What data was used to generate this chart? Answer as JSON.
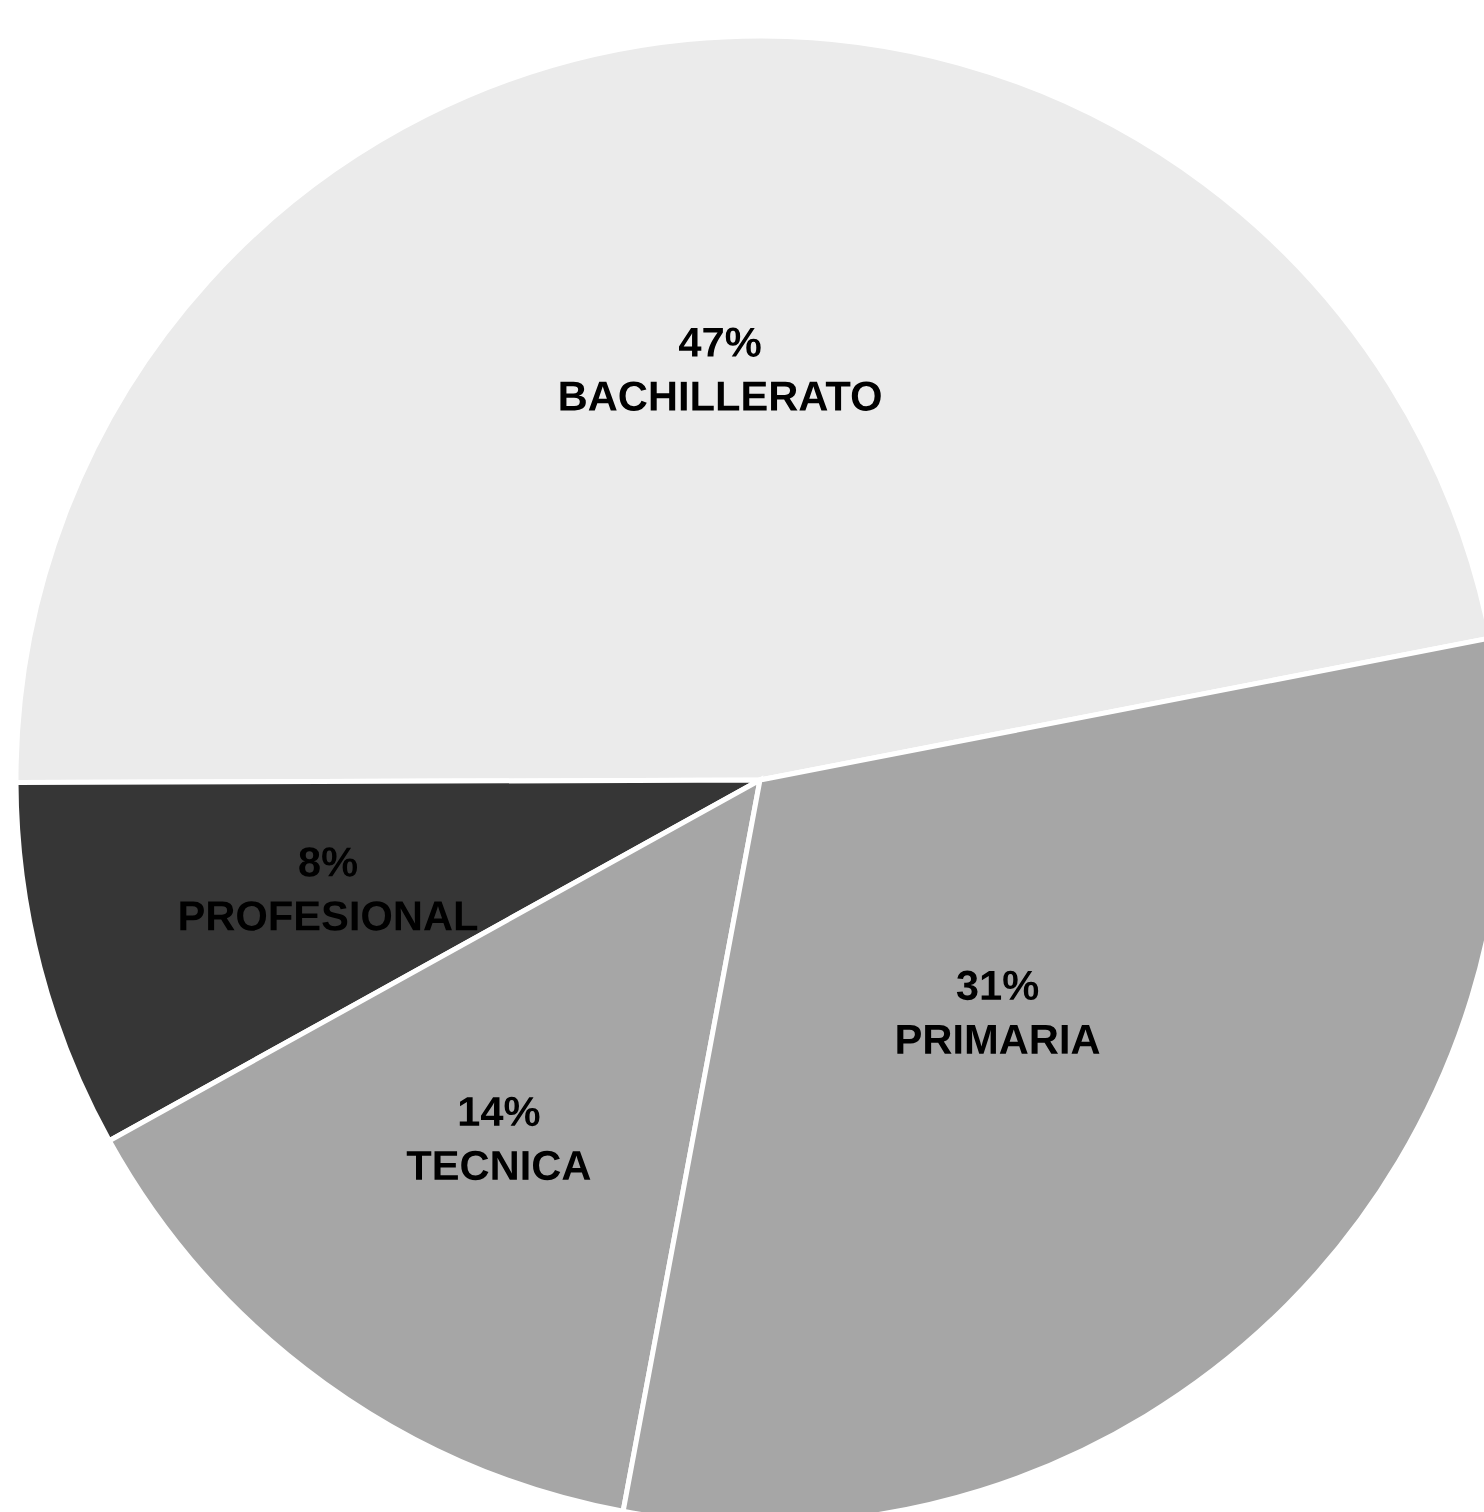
{
  "chart_data": {
    "type": "pie",
    "categories": [
      "BACHILLERATO",
      "PROFESIONAL",
      "TECNICA",
      "PRIMARIA"
    ],
    "values": [
      47,
      8,
      14,
      31
    ],
    "value_labels": [
      "47%",
      "8%",
      "14%",
      "31%"
    ],
    "colors": [
      "#ebebeb",
      "#363636",
      "#a6a6a6",
      "#a6a6a6"
    ],
    "legend": false
  }
}
